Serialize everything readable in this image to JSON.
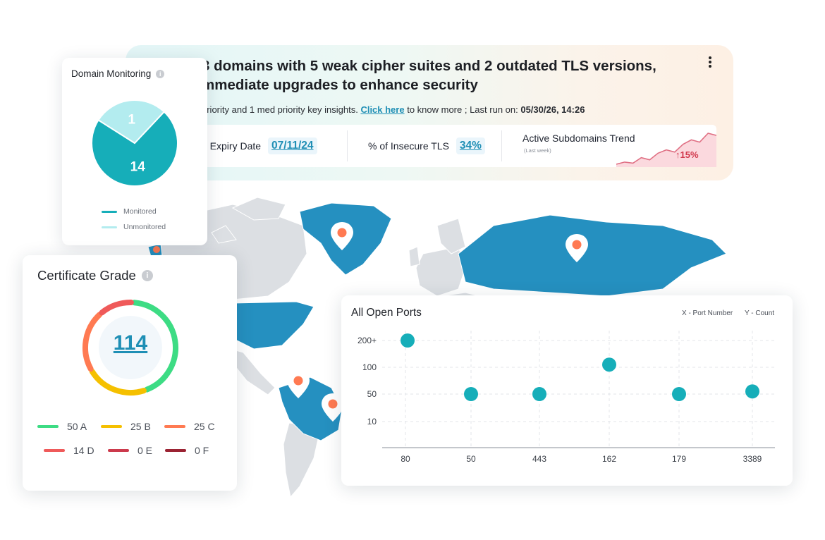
{
  "banner": {
    "headline_line1": "3 domains with 5 weak cipher suites and 2 outdated TLS versions,",
    "headline_line2": "mmediate upgrades to enhance security",
    "sub_text_prefix": "priority and 1 med priority key insights. ",
    "sub_link": "Click here",
    "sub_text_mid": " to know more ; Last run on: ",
    "sub_last_run": "05/30/26, 14:26",
    "menu_icon": "kebab-menu-icon",
    "metrics": {
      "expiry_label": "e Expiry Date",
      "expiry_value": "07/11/24",
      "insecure_tls_label": "% of Insecure TLS",
      "insecure_tls_value": "34%",
      "trend_title": "Active Subdomains Trend",
      "trend_subtitle": "(Last week)",
      "trend_change": "↑15%",
      "trend_values": [
        20,
        22,
        21,
        26,
        24,
        30,
        33,
        31,
        38,
        42,
        40,
        48,
        46
      ]
    }
  },
  "domain_monitoring": {
    "title": "Domain Monitoring",
    "info_icon": "info-icon",
    "chart_data": {
      "type": "pie",
      "categories": [
        "Monitored",
        "Unmonitored"
      ],
      "values": [
        14,
        1
      ],
      "colors": [
        "#16aeb9",
        "#b3ecef"
      ]
    },
    "labels": [
      "14",
      "1"
    ],
    "legend": [
      {
        "label": "Monitored",
        "color": "#16aeb9"
      },
      {
        "label": "Unmonitored",
        "color": "#b3ecef"
      }
    ]
  },
  "certificate_grade": {
    "title": "Certificate Grade",
    "info_icon": "info-icon",
    "score": "114",
    "grades": [
      {
        "label": "50 A",
        "color": "#3ddc84",
        "value": 50
      },
      {
        "label": "25 B",
        "color": "#f5c000",
        "value": 25
      },
      {
        "label": "25 C",
        "color": "#ff7a52",
        "value": 25
      },
      {
        "label": "14 D",
        "color": "#ef5a5a",
        "value": 14
      },
      {
        "label": "0 E",
        "color": "#cc3a4c",
        "value": 0
      },
      {
        "label": "0 F",
        "color": "#9b2333",
        "value": 0
      }
    ]
  },
  "open_ports": {
    "title": "All Open Ports",
    "x_note": "X - Port Number",
    "y_note": "Y - Count",
    "chart_data": {
      "type": "scatter",
      "x": [
        "80",
        "50",
        "443",
        "162",
        "179",
        "3389"
      ],
      "y_ticks": [
        "200+",
        "100",
        "50",
        "10"
      ],
      "values": [
        200,
        50,
        50,
        110,
        50,
        55
      ],
      "xlabel": "",
      "ylabel": "",
      "grid": true,
      "color": "#16aeb9"
    }
  },
  "map": {
    "marker_icon": "location-pin-icon",
    "land_color": "#dcdfe3",
    "highlight_color": "#2590c0",
    "marker_color": "#ff7a52"
  }
}
